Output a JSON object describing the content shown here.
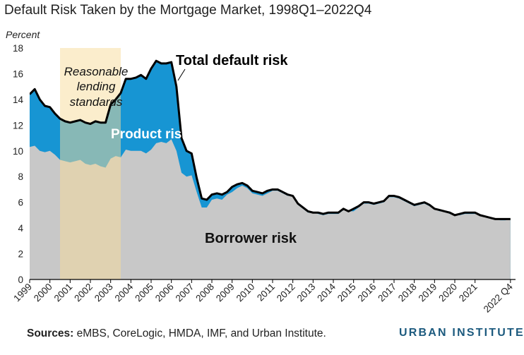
{
  "title": "Default Risk Taken by the Mortgage Market, 1998Q1–2022Q4",
  "footer": {
    "sources_label": "Sources:",
    "sources_text": " eMBS, CoreLogic, HMDA, IMF, and Urban Institute.",
    "brand": "URBAN INSTITUTE"
  },
  "colors": {
    "borrower_risk": "#c8c8c8",
    "product_risk": "#1795d3",
    "total_line": "#000000",
    "shaded_period": "#f8dc9a",
    "product_label": "#ffffff",
    "brand": "#1c5a7e"
  },
  "chart_data": {
    "type": "area",
    "ylabel": "Percent",
    "ylim": [
      0,
      18
    ],
    "yticks": [
      0,
      2,
      4,
      6,
      8,
      10,
      12,
      14,
      16,
      18
    ],
    "xlim": [
      1999.0,
      2023.0
    ],
    "xtick_labels": [
      {
        "x": 1999,
        "label": "1999"
      },
      {
        "x": 2000,
        "label": "2000"
      },
      {
        "x": 2001,
        "label": "2001"
      },
      {
        "x": 2002,
        "label": "2002"
      },
      {
        "x": 2003,
        "label": "2003"
      },
      {
        "x": 2004,
        "label": "2004"
      },
      {
        "x": 2005,
        "label": "2005"
      },
      {
        "x": 2006,
        "label": "2006"
      },
      {
        "x": 2007,
        "label": "2007"
      },
      {
        "x": 2008,
        "label": "2008"
      },
      {
        "x": 2009,
        "label": "2009"
      },
      {
        "x": 2010,
        "label": "2010"
      },
      {
        "x": 2011,
        "label": "2011"
      },
      {
        "x": 2012,
        "label": "2012"
      },
      {
        "x": 2013,
        "label": "2013"
      },
      {
        "x": 2014,
        "label": "2014"
      },
      {
        "x": 2015,
        "label": "2015"
      },
      {
        "x": 2016,
        "label": "2016"
      },
      {
        "x": 2017,
        "label": "2017"
      },
      {
        "x": 2018,
        "label": "2018"
      },
      {
        "x": 2019,
        "label": "2019"
      },
      {
        "x": 2020,
        "label": "2020"
      },
      {
        "x": 2021,
        "label": "2021"
      },
      {
        "x": 2022.75,
        "label": "2022 Q4"
      }
    ],
    "shaded_region": {
      "x": [
        2000.5,
        2003.5
      ],
      "label": "Reasonable lending standards"
    },
    "x": [
      1999.0,
      1999.25,
      1999.5,
      1999.75,
      2000.0,
      2000.25,
      2000.5,
      2000.75,
      2001.0,
      2001.25,
      2001.5,
      2001.75,
      2002.0,
      2002.25,
      2002.5,
      2002.75,
      2003.0,
      2003.25,
      2003.5,
      2003.75,
      2004.0,
      2004.25,
      2004.5,
      2004.75,
      2005.0,
      2005.25,
      2005.5,
      2005.75,
      2006.0,
      2006.25,
      2006.5,
      2006.75,
      2007.0,
      2007.25,
      2007.5,
      2007.75,
      2008.0,
      2008.25,
      2008.5,
      2008.75,
      2009.0,
      2009.25,
      2009.5,
      2009.75,
      2010.0,
      2010.25,
      2010.5,
      2010.75,
      2011.0,
      2011.25,
      2011.5,
      2011.75,
      2012.0,
      2012.25,
      2012.5,
      2012.75,
      2013.0,
      2013.25,
      2013.5,
      2013.75,
      2014.0,
      2014.25,
      2014.5,
      2014.75,
      2015.0,
      2015.25,
      2015.5,
      2015.75,
      2016.0,
      2016.25,
      2016.5,
      2016.75,
      2017.0,
      2017.25,
      2017.5,
      2017.75,
      2018.0,
      2018.25,
      2018.5,
      2018.75,
      2019.0,
      2019.25,
      2019.5,
      2019.75,
      2020.0,
      2020.25,
      2020.5,
      2020.75,
      2021.0,
      2021.25,
      2021.5,
      2021.75,
      2022.0,
      2022.25,
      2022.5,
      2022.75
    ],
    "series": [
      {
        "name": "Borrower risk",
        "values": [
          10.3,
          10.4,
          10.0,
          9.9,
          10.0,
          9.7,
          9.3,
          9.2,
          9.1,
          9.2,
          9.3,
          9.0,
          8.9,
          9.0,
          8.8,
          8.7,
          9.4,
          9.6,
          9.5,
          10.1,
          10.0,
          10.0,
          10.0,
          9.8,
          10.1,
          10.6,
          10.7,
          10.6,
          10.9,
          10.0,
          8.3,
          8.0,
          8.1,
          6.8,
          5.6,
          5.6,
          6.2,
          6.3,
          6.2,
          6.6,
          6.8,
          7.1,
          7.3,
          7.1,
          6.7,
          6.6,
          6.5,
          6.7,
          6.9,
          6.9,
          6.7,
          6.5,
          6.5,
          5.8,
          5.5,
          5.2,
          5.2,
          5.1,
          5.0,
          5.1,
          5.1,
          5.1,
          5.4,
          5.3,
          5.3,
          5.6,
          5.9,
          5.9,
          5.8,
          5.9,
          6.0,
          6.4,
          6.4,
          6.3,
          6.1,
          5.9,
          5.7,
          5.8,
          5.9,
          5.7,
          5.5,
          5.3,
          5.3,
          5.1,
          5.0,
          5.0,
          5.1,
          5.1,
          5.1,
          5.0,
          4.9,
          4.8,
          4.7,
          4.6,
          4.6,
          4.7
        ]
      },
      {
        "name": "Total default risk",
        "values": [
          14.4,
          14.8,
          14.0,
          13.5,
          13.4,
          12.9,
          12.5,
          12.3,
          12.2,
          12.3,
          12.4,
          12.2,
          12.1,
          12.3,
          12.2,
          12.2,
          13.6,
          14.0,
          14.5,
          15.6,
          15.6,
          15.7,
          15.9,
          15.6,
          16.4,
          17.0,
          16.8,
          16.8,
          16.9,
          15.0,
          11.0,
          10.0,
          9.8,
          7.9,
          6.3,
          6.2,
          6.6,
          6.7,
          6.6,
          6.8,
          7.2,
          7.4,
          7.5,
          7.3,
          6.9,
          6.8,
          6.7,
          6.9,
          7.0,
          7.0,
          6.8,
          6.6,
          6.5,
          5.9,
          5.6,
          5.3,
          5.2,
          5.2,
          5.1,
          5.2,
          5.2,
          5.2,
          5.5,
          5.3,
          5.5,
          5.7,
          6.0,
          6.0,
          5.9,
          6.0,
          6.1,
          6.5,
          6.5,
          6.4,
          6.2,
          6.0,
          5.8,
          5.9,
          6.0,
          5.8,
          5.5,
          5.4,
          5.3,
          5.2,
          5.0,
          5.1,
          5.2,
          5.2,
          5.2,
          5.0,
          4.9,
          4.8,
          4.7,
          4.7,
          4.7,
          4.7
        ]
      }
    ],
    "annotations": {
      "total_default_risk": "Total default risk",
      "product_risk": "Product risk",
      "borrower_risk": "Borrower risk",
      "shaded_line1": "Reasonable",
      "shaded_line2": "lending",
      "shaded_line3": "standards"
    }
  }
}
